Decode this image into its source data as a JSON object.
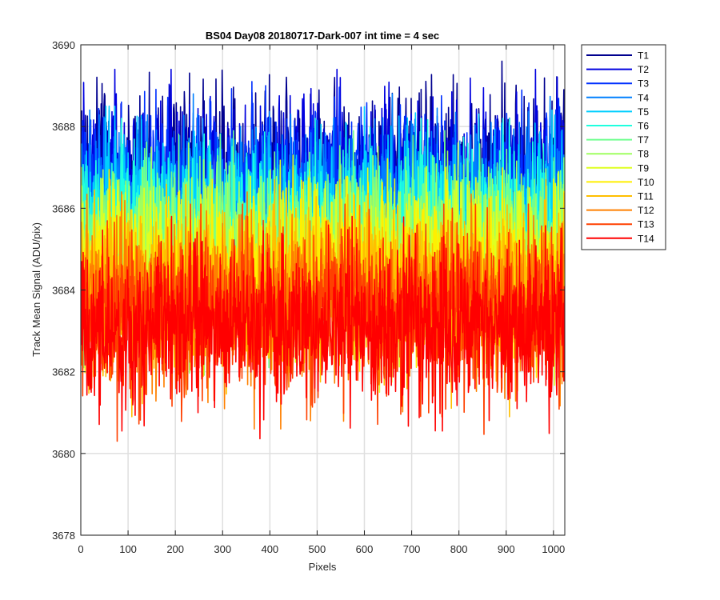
{
  "chart_data": {
    "type": "line",
    "title": "BS04 Day08 20180717-Dark-007 int time = 4 sec",
    "xlabel": "Pixels",
    "ylabel": "Track Mean Signal (ADU/pix)",
    "xlim": [
      0,
      1024
    ],
    "ylim": [
      3678,
      3690
    ],
    "xticks": [
      0,
      100,
      200,
      300,
      400,
      500,
      600,
      700,
      800,
      900,
      1000
    ],
    "yticks": [
      3678,
      3680,
      3682,
      3684,
      3686,
      3688,
      3690
    ],
    "grid": true,
    "legend_position": "outside-top-right",
    "n_points": 1024,
    "noise_sigma": 1.0,
    "noise_clip": [
      -3.1,
      2.7
    ],
    "series": [
      {
        "name": "T1",
        "color": "#00008f",
        "mean": 3686.9
      },
      {
        "name": "T2",
        "color": "#0000df",
        "mean": 3686.7
      },
      {
        "name": "T3",
        "color": "#0030ff",
        "mean": 3686.4
      },
      {
        "name": "T4",
        "color": "#0080ff",
        "mean": 3686.1
      },
      {
        "name": "T5",
        "color": "#00cfff",
        "mean": 3685.8
      },
      {
        "name": "T6",
        "color": "#20ffdf",
        "mean": 3685.5
      },
      {
        "name": "T7",
        "color": "#70ff8f",
        "mean": 3685.2
      },
      {
        "name": "T8",
        "color": "#9fff60",
        "mean": 3684.9
      },
      {
        "name": "T9",
        "color": "#dfff20",
        "mean": 3684.6
      },
      {
        "name": "T10",
        "color": "#ffef00",
        "mean": 3684.3
      },
      {
        "name": "T11",
        "color": "#ffbf00",
        "mean": 3684.0
      },
      {
        "name": "T12",
        "color": "#ff8000",
        "mean": 3683.7
      },
      {
        "name": "T13",
        "color": "#ff4000",
        "mean": 3683.4
      },
      {
        "name": "T14",
        "color": "#ff0000",
        "mean": 3683.1
      }
    ]
  }
}
